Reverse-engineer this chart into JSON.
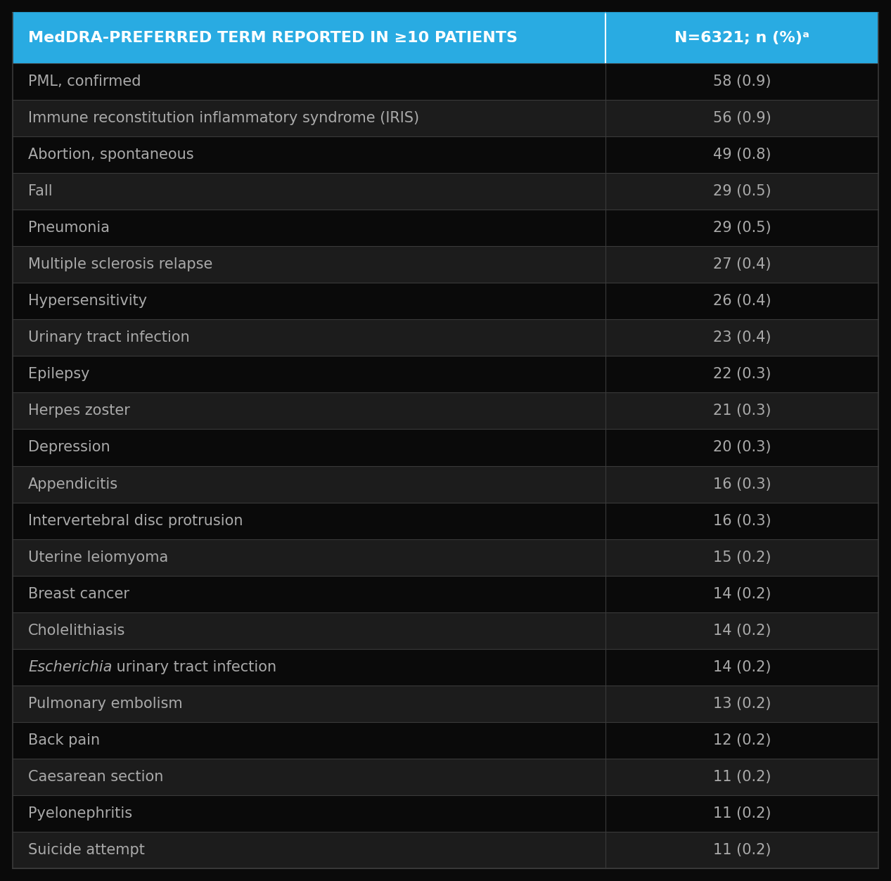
{
  "header_col1": "MedDRA-PREFERRED TERM REPORTED IN ≥10 PATIENTS",
  "header_col2": "N=6321; n (%)ᵃ",
  "header_bg": "#29abe2",
  "header_text_color": "#ffffff",
  "row_bg_dark": "#0a0a0a",
  "row_bg_light": "#1c1c1c",
  "row_text_color": "#aaaaaa",
  "grid_color": "#3a3a3a",
  "background_color": "#0a0a0a",
  "col_split": 0.685,
  "rows": [
    {
      "term": "PML, confirmed",
      "value": "58 (0.9)",
      "italic_prefix": null
    },
    {
      "term": "Immune reconstitution inflammatory syndrome (IRIS)",
      "value": "56 (0.9)",
      "italic_prefix": null
    },
    {
      "term": "Abortion, spontaneous",
      "value": "49 (0.8)",
      "italic_prefix": null
    },
    {
      "term": "Fall",
      "value": "29 (0.5)",
      "italic_prefix": null
    },
    {
      "term": "Pneumonia",
      "value": "29 (0.5)",
      "italic_prefix": null
    },
    {
      "term": "Multiple sclerosis relapse",
      "value": "27 (0.4)",
      "italic_prefix": null
    },
    {
      "term": "Hypersensitivity",
      "value": "26 (0.4)",
      "italic_prefix": null
    },
    {
      "term": "Urinary tract infection",
      "value": "23 (0.4)",
      "italic_prefix": null
    },
    {
      "term": "Epilepsy",
      "value": "22 (0.3)",
      "italic_prefix": null
    },
    {
      "term": "Herpes zoster",
      "value": "21 (0.3)",
      "italic_prefix": null
    },
    {
      "term": "Depression",
      "value": "20 (0.3)",
      "italic_prefix": null
    },
    {
      "term": "Appendicitis",
      "value": "16 (0.3)",
      "italic_prefix": null
    },
    {
      "term": "Intervertebral disc protrusion",
      "value": "16 (0.3)",
      "italic_prefix": null
    },
    {
      "term": "Uterine leiomyoma",
      "value": "15 (0.2)",
      "italic_prefix": null
    },
    {
      "term": "Breast cancer",
      "value": "14 (0.2)",
      "italic_prefix": null
    },
    {
      "term": "Cholelithiasis",
      "value": "14 (0.2)",
      "italic_prefix": null
    },
    {
      "term": "Escherichia urinary tract infection",
      "value": "14 (0.2)",
      "italic_prefix": "Escherichia"
    },
    {
      "term": "Pulmonary embolism",
      "value": "13 (0.2)",
      "italic_prefix": null
    },
    {
      "term": "Back pain",
      "value": "12 (0.2)",
      "italic_prefix": null
    },
    {
      "term": "Caesarean section",
      "value": "11 (0.2)",
      "italic_prefix": null
    },
    {
      "term": "Pyelonephritis",
      "value": "11 (0.2)",
      "italic_prefix": null
    },
    {
      "term": "Suicide attempt",
      "value": "11 (0.2)",
      "italic_prefix": null
    }
  ]
}
